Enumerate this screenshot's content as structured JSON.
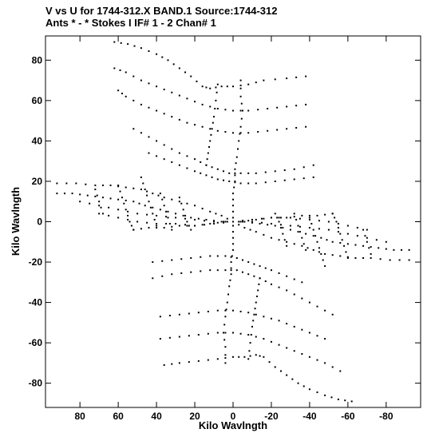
{
  "header": {
    "line1": "V vs U for 1744-312.X BAND.1   Source:1744-312",
    "line2": "Ants * - *    Stokes I  IF# 1 - 2  Chan# 1"
  },
  "chart_data": {
    "type": "scatter",
    "title": "V vs U for 1744-312.X BAND.1   Source:1744-312",
    "subtitle": "Ants * - *    Stokes I  IF# 1 - 2  Chan# 1",
    "xlabel": "Kilo Wavlngth",
    "ylabel": "Kilo Wavlngth",
    "xlim": [
      98,
      -98
    ],
    "ylim": [
      -92,
      92
    ],
    "x_reversed": true,
    "grid": false,
    "legend": "none",
    "marker_color": "#000000",
    "xticks": [
      80,
      60,
      40,
      20,
      0,
      -20,
      -40,
      -60,
      -80
    ],
    "yticks": [
      80,
      60,
      40,
      20,
      0,
      -20,
      -40,
      -60,
      -80
    ],
    "xtick_labels": [
      "80",
      "60",
      "40",
      "20",
      "0",
      "-20",
      "-40",
      "-60",
      "-80"
    ],
    "ytick_labels": [
      "80",
      "60",
      "40",
      "20",
      "0",
      "-20",
      "-40",
      "-60",
      "-80"
    ],
    "series": [
      {
        "points": [
          [
            -38,
            72
          ],
          [
            -28,
            71
          ],
          [
            -16,
            70
          ],
          [
            -8,
            68
          ],
          [
            0,
            67
          ],
          [
            6,
            67
          ],
          [
            12,
            66
          ],
          [
            16,
            67
          ],
          [
            22,
            72
          ],
          [
            28,
            76
          ],
          [
            34,
            80
          ],
          [
            40,
            83
          ],
          [
            48,
            86
          ],
          [
            55,
            88
          ],
          [
            62,
            89
          ]
        ]
      },
      {
        "points": [
          [
            -38,
            58
          ],
          [
            -28,
            57
          ],
          [
            -18,
            56
          ],
          [
            -8,
            55
          ],
          [
            0,
            55
          ],
          [
            8,
            56
          ],
          [
            16,
            58
          ],
          [
            24,
            61
          ],
          [
            32,
            64
          ],
          [
            40,
            67
          ],
          [
            48,
            70
          ],
          [
            56,
            74
          ],
          [
            62,
            76
          ]
        ]
      },
      {
        "points": [
          [
            -38,
            47
          ],
          [
            -28,
            46
          ],
          [
            -18,
            45
          ],
          [
            -8,
            44
          ],
          [
            0,
            44
          ],
          [
            8,
            45
          ],
          [
            16,
            47
          ],
          [
            24,
            49
          ],
          [
            32,
            52
          ],
          [
            40,
            55
          ],
          [
            48,
            58
          ],
          [
            56,
            62
          ],
          [
            60,
            65
          ]
        ]
      },
      {
        "points": [
          [
            -42,
            28
          ],
          [
            -32,
            26
          ],
          [
            -22,
            25
          ],
          [
            -12,
            24
          ],
          [
            -4,
            24
          ],
          [
            2,
            24
          ],
          [
            8,
            26
          ],
          [
            14,
            28
          ],
          [
            20,
            31
          ],
          [
            28,
            34
          ],
          [
            36,
            38
          ],
          [
            44,
            42
          ],
          [
            52,
            46
          ]
        ]
      },
      {
        "points": [
          [
            -42,
            22
          ],
          [
            -32,
            21
          ],
          [
            -22,
            20
          ],
          [
            -12,
            19
          ],
          [
            -4,
            19
          ],
          [
            2,
            20
          ],
          [
            8,
            21
          ],
          [
            14,
            23
          ],
          [
            20,
            25
          ],
          [
            28,
            28
          ],
          [
            36,
            31
          ],
          [
            44,
            34
          ]
        ]
      },
      {
        "points": [
          [
            36,
            -71
          ],
          [
            28,
            -70
          ],
          [
            18,
            -69
          ],
          [
            8,
            -68
          ],
          [
            0,
            -67
          ],
          [
            -6,
            -67
          ],
          [
            -12,
            -66
          ],
          [
            -16,
            -67
          ],
          [
            -22,
            -72
          ],
          [
            -28,
            -76
          ],
          [
            -34,
            -80
          ],
          [
            -40,
            -83
          ],
          [
            -48,
            -86
          ],
          [
            -55,
            -88
          ],
          [
            -62,
            -89
          ]
        ]
      },
      {
        "points": [
          [
            38,
            -58
          ],
          [
            28,
            -57
          ],
          [
            18,
            -56
          ],
          [
            8,
            -55
          ],
          [
            0,
            -55
          ],
          [
            -8,
            -56
          ],
          [
            -16,
            -58
          ],
          [
            -24,
            -61
          ],
          [
            -32,
            -64
          ],
          [
            -40,
            -67
          ],
          [
            -48,
            -70
          ],
          [
            -56,
            -74
          ]
        ]
      },
      {
        "points": [
          [
            38,
            -47
          ],
          [
            28,
            -46
          ],
          [
            18,
            -45
          ],
          [
            8,
            -44
          ],
          [
            0,
            -44
          ],
          [
            -8,
            -45
          ],
          [
            -16,
            -47
          ],
          [
            -24,
            -49
          ],
          [
            -32,
            -52
          ],
          [
            -40,
            -55
          ],
          [
            -48,
            -58
          ]
        ]
      },
      {
        "points": [
          [
            42,
            -28
          ],
          [
            32,
            -26
          ],
          [
            22,
            -25
          ],
          [
            12,
            -24
          ],
          [
            4,
            -24
          ],
          [
            -2,
            -24
          ],
          [
            -8,
            -26
          ],
          [
            -14,
            -28
          ],
          [
            -20,
            -31
          ],
          [
            -28,
            -34
          ],
          [
            -36,
            -38
          ],
          [
            -44,
            -42
          ],
          [
            -52,
            -46
          ]
        ]
      },
      {
        "points": [
          [
            42,
            -20
          ],
          [
            32,
            -19
          ],
          [
            22,
            -18
          ],
          [
            12,
            -17
          ],
          [
            4,
            -17
          ],
          [
            -2,
            -18
          ],
          [
            -8,
            -20
          ],
          [
            -14,
            -22
          ],
          [
            -20,
            -24
          ],
          [
            -28,
            -27
          ],
          [
            -36,
            -30
          ]
        ]
      },
      {
        "points": [
          [
            -4,
            70
          ],
          [
            -4,
            62
          ],
          [
            -5,
            55
          ],
          [
            -4,
            47
          ],
          [
            -3,
            40
          ],
          [
            -2,
            32
          ],
          [
            -1,
            26
          ],
          [
            -1,
            20
          ],
          [
            0,
            14
          ],
          [
            0,
            8
          ],
          [
            0,
            2
          ]
        ]
      },
      {
        "points": [
          [
            8,
            68
          ],
          [
            9,
            60
          ],
          [
            10,
            52
          ],
          [
            11,
            46
          ],
          [
            12,
            40
          ],
          [
            13,
            34
          ],
          [
            14,
            28
          ]
        ]
      },
      {
        "points": [
          [
            4,
            -70
          ],
          [
            4,
            -62
          ],
          [
            5,
            -55
          ],
          [
            4,
            -47
          ],
          [
            3,
            -40
          ],
          [
            2,
            -32
          ],
          [
            1,
            -26
          ],
          [
            1,
            -20
          ],
          [
            0,
            -14
          ],
          [
            0,
            -8
          ],
          [
            0,
            -2
          ]
        ]
      },
      {
        "points": [
          [
            -8,
            -68
          ],
          [
            -9,
            -60
          ],
          [
            -10,
            -52
          ],
          [
            -11,
            -46
          ],
          [
            -12,
            -40
          ],
          [
            -13,
            -34
          ],
          [
            -14,
            -28
          ]
        ]
      },
      {
        "points": [
          [
            92,
            19
          ],
          [
            82,
            19
          ],
          [
            72,
            18
          ],
          [
            64,
            18
          ],
          [
            56,
            17
          ],
          [
            48,
            16
          ],
          [
            42,
            14
          ],
          [
            36,
            12
          ],
          [
            28,
            10
          ],
          [
            20,
            8
          ],
          [
            12,
            5
          ],
          [
            6,
            3
          ],
          [
            0,
            0
          ],
          [
            -6,
            -3
          ],
          [
            -12,
            -5
          ],
          [
            -20,
            -8
          ],
          [
            -28,
            -10
          ],
          [
            -36,
            -12
          ],
          [
            -42,
            -14
          ],
          [
            -48,
            -16
          ],
          [
            -56,
            -17
          ],
          [
            -64,
            -18
          ],
          [
            -72,
            -18
          ],
          [
            -82,
            -19
          ],
          [
            -92,
            -19
          ]
        ]
      },
      {
        "points": [
          [
            92,
            14
          ],
          [
            84,
            14
          ],
          [
            76,
            13
          ],
          [
            68,
            12
          ],
          [
            60,
            11
          ],
          [
            52,
            10
          ],
          [
            46,
            8
          ],
          [
            38,
            6
          ],
          [
            30,
            4
          ],
          [
            22,
            2
          ],
          [
            14,
            1
          ],
          [
            6,
            0
          ],
          [
            0,
            0
          ],
          [
            -6,
            0
          ],
          [
            -14,
            -1
          ],
          [
            -22,
            -2
          ],
          [
            -30,
            -4
          ],
          [
            -38,
            -6
          ],
          [
            -46,
            -8
          ],
          [
            -52,
            -10
          ],
          [
            -60,
            -11
          ],
          [
            -68,
            -12
          ],
          [
            -76,
            -13
          ],
          [
            -84,
            -14
          ],
          [
            -92,
            -14
          ]
        ]
      },
      {
        "points": [
          [
            80,
            10
          ],
          [
            70,
            8
          ],
          [
            60,
            6
          ],
          [
            50,
            4
          ],
          [
            40,
            3
          ],
          [
            30,
            2
          ],
          [
            20,
            1
          ],
          [
            10,
            0
          ],
          [
            0,
            0
          ],
          [
            -10,
            0
          ],
          [
            -20,
            -1
          ],
          [
            -30,
            -2
          ],
          [
            -40,
            -3
          ],
          [
            -50,
            -4
          ],
          [
            -60,
            -6
          ],
          [
            -70,
            -8
          ],
          [
            -80,
            -10
          ]
        ]
      },
      {
        "points": [
          [
            70,
            4
          ],
          [
            60,
            2
          ],
          [
            50,
            0
          ],
          [
            40,
            -1
          ],
          [
            30,
            -1
          ],
          [
            20,
            -2
          ],
          [
            10,
            -1
          ],
          [
            0,
            0
          ],
          [
            -10,
            1
          ],
          [
            -20,
            2
          ],
          [
            -30,
            2
          ],
          [
            -40,
            1
          ],
          [
            -50,
            0
          ],
          [
            -60,
            -2
          ],
          [
            -70,
            -4
          ]
        ]
      },
      {
        "points": [
          [
            52,
            -4
          ],
          [
            44,
            -3
          ],
          [
            36,
            -3
          ],
          [
            28,
            -2
          ],
          [
            20,
            -2
          ],
          [
            12,
            -1
          ],
          [
            4,
            0
          ],
          [
            -4,
            0
          ],
          [
            -12,
            1
          ],
          [
            -20,
            2
          ],
          [
            -28,
            2
          ],
          [
            -36,
            3
          ],
          [
            -44,
            3
          ],
          [
            -52,
            4
          ]
        ]
      },
      {
        "points": [
          [
            48,
            22
          ],
          [
            46,
            16
          ],
          [
            44,
            10
          ],
          [
            42,
            4
          ],
          [
            40,
            -2
          ]
        ]
      },
      {
        "points": [
          [
            38,
            14
          ],
          [
            36,
            8
          ],
          [
            34,
            2
          ],
          [
            32,
            -4
          ]
        ]
      },
      {
        "points": [
          [
            28,
            12
          ],
          [
            26,
            6
          ],
          [
            24,
            0
          ],
          [
            22,
            -4
          ]
        ]
      },
      {
        "points": [
          [
            60,
            18
          ],
          [
            58,
            12
          ],
          [
            56,
            6
          ],
          [
            54,
            0
          ],
          [
            52,
            -4
          ]
        ]
      },
      {
        "points": [
          [
            72,
            16
          ],
          [
            70,
            10
          ],
          [
            68,
            4
          ]
        ]
      },
      {
        "points": [
          [
            -48,
            -22
          ],
          [
            -46,
            -16
          ],
          [
            -44,
            -10
          ],
          [
            -42,
            -4
          ],
          [
            -40,
            2
          ]
        ]
      },
      {
        "points": [
          [
            -38,
            -14
          ],
          [
            -36,
            -8
          ],
          [
            -34,
            -2
          ],
          [
            -32,
            4
          ]
        ]
      },
      {
        "points": [
          [
            -28,
            -12
          ],
          [
            -26,
            -6
          ],
          [
            -24,
            0
          ],
          [
            -22,
            4
          ]
        ]
      },
      {
        "points": [
          [
            -60,
            -18
          ],
          [
            -58,
            -12
          ],
          [
            -56,
            -6
          ],
          [
            -54,
            0
          ],
          [
            -52,
            4
          ]
        ]
      },
      {
        "points": [
          [
            -72,
            -16
          ],
          [
            -70,
            -10
          ],
          [
            -68,
            -4
          ]
        ]
      }
    ]
  }
}
